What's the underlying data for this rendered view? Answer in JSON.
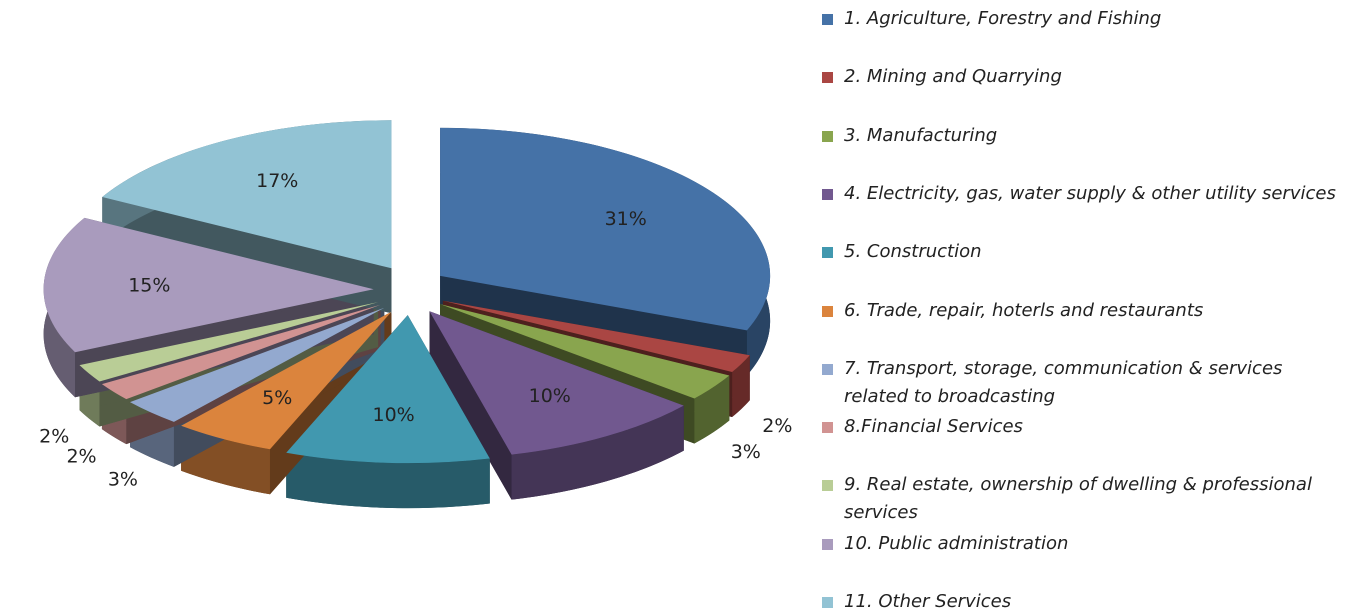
{
  "chart_data": {
    "type": "pie",
    "categories": [
      "1. Agriculture, Forestry and Fishing",
      "2. Mining and Quarrying",
      "3. Manufacturing",
      "4. Electricity, gas, water supply & other utility services",
      "5. Construction",
      "6. Trade, repair, hoterls and restaurants",
      "7. Transport, storage, communication & services related to broadcasting",
      "8.Financial Services",
      "9. Real estate, ownership of dwelling & professional services",
      "10. Public administration",
      "11. Other Services"
    ],
    "values": [
      31,
      2,
      3,
      10,
      10,
      5,
      3,
      2,
      2,
      15,
      17
    ],
    "value_labels": [
      "31%",
      "2%",
      "3%",
      "10%",
      "10%",
      "5%",
      "3%",
      "2%",
      "2%",
      "15%",
      "17%"
    ],
    "colors": [
      "#4572a7",
      "#aa4643",
      "#89a54e",
      "#71588f",
      "#4198af",
      "#db843d",
      "#93a9cf",
      "#d19392",
      "#b9cd96",
      "#a99bbd",
      "#92c3d4"
    ],
    "legend": "right"
  }
}
